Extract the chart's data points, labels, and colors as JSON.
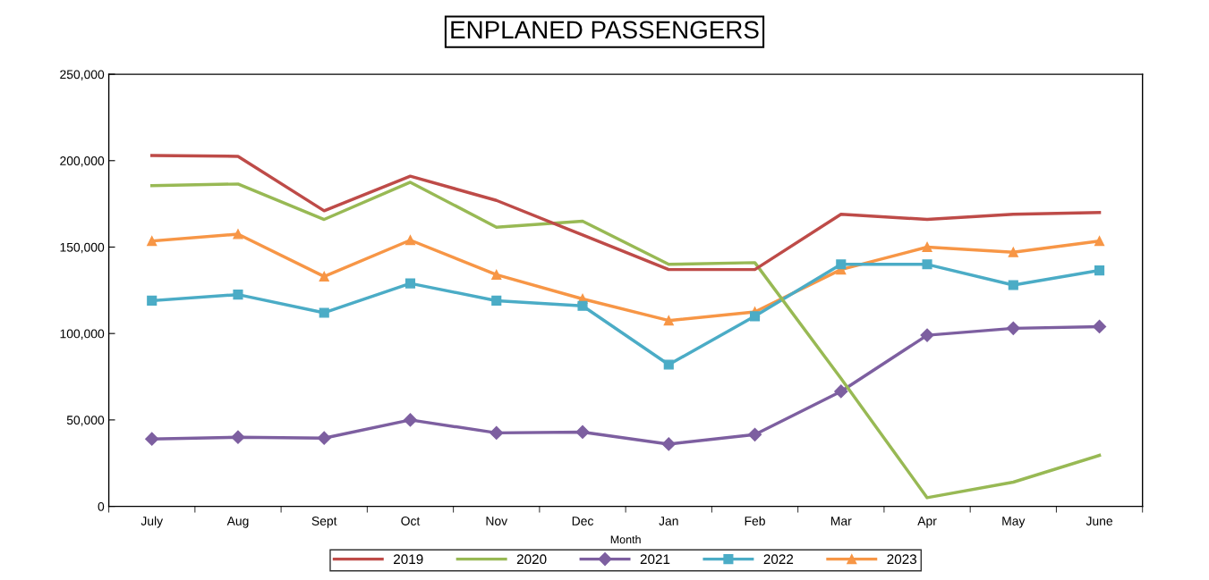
{
  "chart_data": {
    "type": "line",
    "title": "ENPLANED PASSENGERS",
    "xlabel": "Month",
    "categories": [
      "July",
      "Aug",
      "Sept",
      "Oct",
      "Nov",
      "Dec",
      "Jan",
      "Feb",
      "Mar",
      "Apr",
      "May",
      "June"
    ],
    "ylim": [
      0,
      250000
    ],
    "yticks": [
      {
        "value": 0,
        "label": "0"
      },
      {
        "value": 50000,
        "label": "50,000"
      },
      {
        "value": 100000,
        "label": "100,000"
      },
      {
        "value": 150000,
        "label": "150,000"
      },
      {
        "value": 200000,
        "label": "200,000"
      },
      {
        "value": 250000,
        "label": "250,000"
      }
    ],
    "grid": false,
    "legend": "bottom",
    "line_style": "solid",
    "series": [
      {
        "name": "2019",
        "color": "#be4b48",
        "marker": "none",
        "values": [
          203000,
          202500,
          171000,
          191000,
          177000,
          157000,
          137000,
          137000,
          169000,
          166000,
          169000,
          170000
        ]
      },
      {
        "name": "2020",
        "color": "#98b954",
        "marker": "none",
        "values": [
          185500,
          186500,
          166000,
          187500,
          161500,
          165000,
          140000,
          141000,
          74000,
          5000,
          14000,
          29500
        ]
      },
      {
        "name": "2021",
        "color": "#7d5fa0",
        "marker": "diamond",
        "values": [
          39000,
          40000,
          39500,
          50000,
          42500,
          43000,
          36000,
          41500,
          66500,
          99000,
          103000,
          104000
        ]
      },
      {
        "name": "2022",
        "color": "#4bacc6",
        "marker": "square",
        "values": [
          119000,
          122500,
          112000,
          129000,
          119000,
          116000,
          82000,
          110000,
          140000,
          140000,
          128000,
          136500
        ]
      },
      {
        "name": "2023",
        "color": "#f79646",
        "marker": "triangle",
        "values": [
          153500,
          157500,
          133000,
          154000,
          134000,
          120000,
          107500,
          112500,
          137000,
          150000,
          147000,
          153500
        ]
      }
    ]
  }
}
